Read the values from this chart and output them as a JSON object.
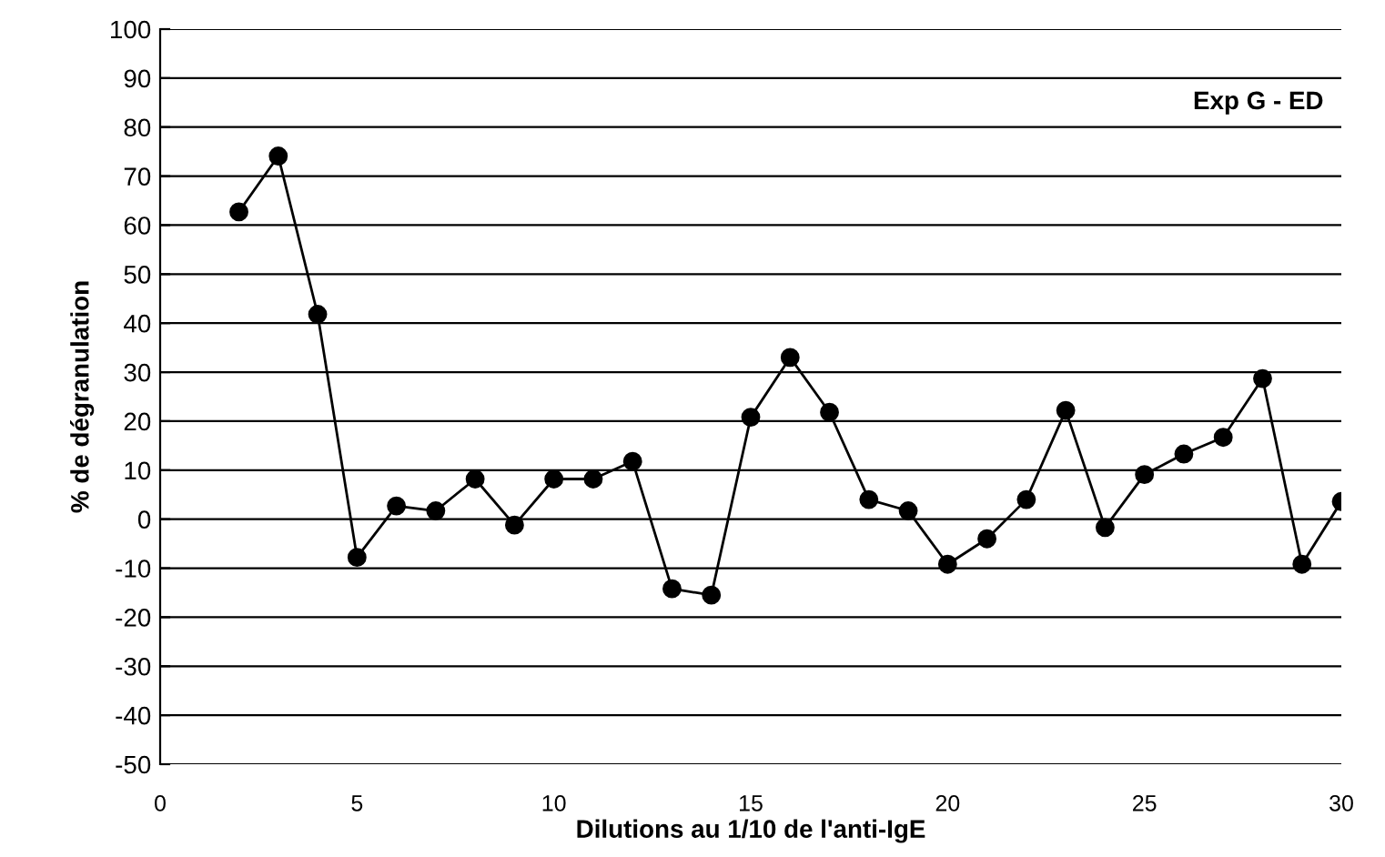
{
  "chart_data": {
    "type": "line",
    "xlabel": "Dilutions au 1/10 de l'anti-IgE",
    "ylabel": "% de dégranulation",
    "annotations": [
      "Exp G - ED"
    ],
    "x": [
      2,
      3,
      4,
      5,
      6,
      7,
      8,
      9,
      10,
      11,
      12,
      13,
      14,
      15,
      16,
      17,
      18,
      19,
      20,
      21,
      22,
      23,
      24,
      25,
      26,
      27,
      28,
      29,
      30
    ],
    "series": [
      {
        "color": "#000000",
        "values": [
          62.7,
          74.1,
          41.8,
          -7.8,
          2.7,
          1.7,
          8.2,
          -1.2,
          8.2,
          8.2,
          11.8,
          -14.2,
          -15.5,
          20.8,
          33,
          21.8,
          4,
          1.7,
          -9.2,
          -4,
          4,
          22.2,
          -1.7,
          9.1,
          13.3,
          16.7,
          28.7,
          -9.2,
          3.6
        ]
      }
    ],
    "xlim": [
      0,
      30
    ],
    "xticks": [
      0,
      5,
      10,
      15,
      20,
      25,
      30
    ],
    "ylim": [
      -50,
      100
    ],
    "yticks": [
      -50,
      -40,
      -30,
      -20,
      -10,
      0,
      10,
      20,
      30,
      40,
      50,
      60,
      70,
      80,
      90,
      100
    ],
    "grid": "y",
    "marker": "circle",
    "line_style": "solid"
  }
}
